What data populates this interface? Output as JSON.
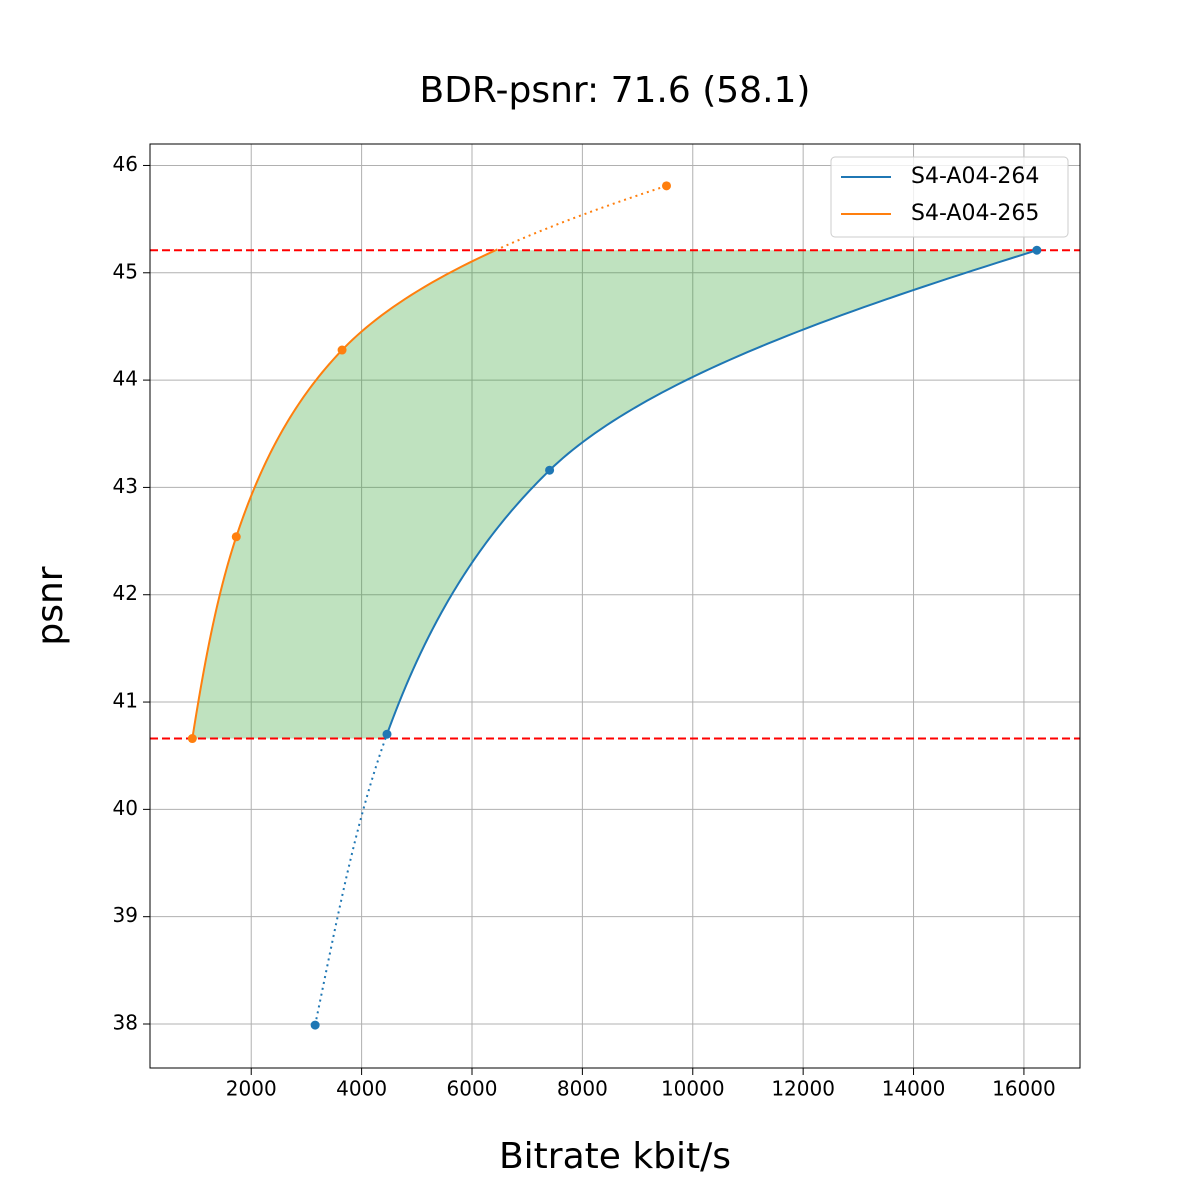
{
  "chart_data": {
    "type": "line",
    "title": "BDR-psnr: 71.6 (58.1)",
    "x_label": "Bitrate kbit/s",
    "y_label": "psnr",
    "series": [
      {
        "name": "S4-A04-264",
        "color": "#1f77b4",
        "x": [
          3158,
          4460,
          7406,
          16234
        ],
        "values": [
          37.99,
          40.7,
          43.16,
          45.21
        ]
      },
      {
        "name": "S4-A04-265",
        "color": "#ff7f0e",
        "x": [
          933,
          1729,
          3646,
          9524
        ],
        "values": [
          40.66,
          42.54,
          44.28,
          45.81
        ]
      }
    ],
    "xlim": [
      166,
      17016
    ],
    "xticks": [
      2000,
      4000,
      6000,
      8000,
      10000,
      12000,
      14000,
      16000
    ],
    "ylim": [
      37.59,
      46.2
    ],
    "yticks": [
      38,
      39,
      40,
      41,
      42,
      43,
      44,
      45,
      46
    ],
    "grid": true,
    "legend": "upper right",
    "fill_color": "#2ca02c",
    "limit_line_color": "#ff0000"
  }
}
